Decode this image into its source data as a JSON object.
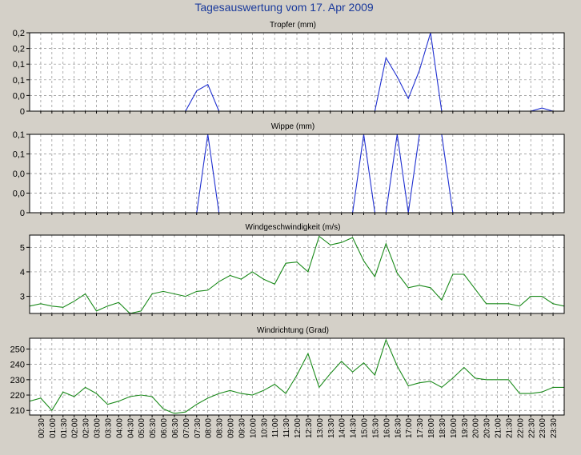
{
  "title": "Tagesauswertung vom 17. Apr 2009",
  "colors": {
    "background": "#d4d0c8",
    "plot_background": "#ffffff",
    "title": "#1a3a9c",
    "grid": "#8c8c8c",
    "blue_series": "#1f2fd0",
    "green_series": "#1a8a1a"
  },
  "x_labels": [
    "00:30",
    "01:00",
    "01:30",
    "02:00",
    "02:30",
    "03:00",
    "03:30",
    "04:00",
    "04:30",
    "05:00",
    "05:30",
    "06:00",
    "06:30",
    "07:00",
    "07:30",
    "08:00",
    "08:30",
    "09:00",
    "09:30",
    "10:00",
    "10:30",
    "11:00",
    "11:30",
    "12:00",
    "12:30",
    "13:00",
    "13:30",
    "14:00",
    "14:30",
    "15:00",
    "15:30",
    "16:00",
    "16:30",
    "17:00",
    "17:30",
    "18:00",
    "18:30",
    "19:00",
    "19:30",
    "20:00",
    "20:30",
    "21:00",
    "21:30",
    "22:00",
    "22:30",
    "23:00",
    "23:30"
  ],
  "chart_data": [
    {
      "type": "line",
      "title": "Tropfer (mm)",
      "y_tick_labels": [
        "0",
        "0,0",
        "0,1",
        "0,1",
        "0,2",
        "0,2"
      ],
      "ylim": [
        0,
        0.25
      ],
      "grid": true,
      "color": "#1f2fd0",
      "x": [
        "00:00",
        "00:30",
        "01:00",
        "01:30",
        "02:00",
        "02:30",
        "03:00",
        "03:30",
        "04:00",
        "04:30",
        "05:00",
        "05:30",
        "06:00",
        "06:30",
        "07:00",
        "07:30",
        "08:00",
        "08:30",
        "09:00",
        "09:30",
        "10:00",
        "10:30",
        "11:00",
        "11:30",
        "12:00",
        "12:30",
        "13:00",
        "13:30",
        "14:00",
        "14:30",
        "15:00",
        "15:30",
        "16:00",
        "16:30",
        "17:00",
        "17:30",
        "18:00",
        "18:30",
        "19:00",
        "19:30",
        "20:00",
        "20:30",
        "21:00",
        "21:30",
        "22:00",
        "22:30",
        "23:00",
        "23:30",
        "24:00"
      ],
      "values": [
        0,
        0,
        0,
        0,
        0,
        0,
        0,
        0,
        0,
        0,
        0,
        0,
        0,
        0,
        0,
        0.065,
        0.085,
        0,
        0,
        0,
        0,
        0,
        0,
        0,
        0,
        0,
        0,
        0,
        0,
        0,
        0,
        0,
        0.17,
        0.11,
        0.04,
        0.13,
        0.25,
        0,
        0,
        0,
        0,
        0,
        0,
        0,
        0,
        0,
        0.01,
        0,
        0
      ]
    },
    {
      "type": "line",
      "title": "Wippe (mm)",
      "y_tick_labels": [
        "0",
        "0,0",
        "0,0",
        "0,1",
        "0,1"
      ],
      "ylim": [
        0,
        0.2
      ],
      "grid": true,
      "color": "#1f2fd0",
      "x": [
        "00:00",
        "00:30",
        "01:00",
        "01:30",
        "02:00",
        "02:30",
        "03:00",
        "03:30",
        "04:00",
        "04:30",
        "05:00",
        "05:30",
        "06:00",
        "06:30",
        "07:00",
        "07:30",
        "08:00",
        "08:30",
        "09:00",
        "09:30",
        "10:00",
        "10:30",
        "11:00",
        "11:30",
        "12:00",
        "12:30",
        "13:00",
        "13:30",
        "14:00",
        "14:30",
        "15:00",
        "15:30",
        "16:00",
        "16:30",
        "17:00",
        "17:30",
        "18:00",
        "18:30",
        "19:00",
        "19:30",
        "20:00",
        "20:30",
        "21:00",
        "21:30",
        "22:00",
        "22:30",
        "23:00",
        "23:30",
        "24:00"
      ],
      "values": [
        0,
        0,
        0,
        0,
        0,
        0,
        0,
        0,
        0,
        0,
        0,
        0,
        0,
        0,
        0,
        0,
        0.2,
        0,
        0,
        0,
        0,
        0,
        0,
        0,
        0,
        0,
        0,
        0,
        0,
        0,
        0.2,
        0,
        0,
        0.2,
        0,
        0.2,
        0.2,
        0.2,
        0,
        0,
        0,
        0,
        0,
        0,
        0,
        0,
        0,
        0,
        0
      ]
    },
    {
      "type": "line",
      "title": "Windgeschwindigkeit (m/s)",
      "y_tick_labels": [
        "3",
        "4",
        "5"
      ],
      "y_ticks": [
        3,
        4,
        5
      ],
      "ylim": [
        2.3,
        5.5
      ],
      "grid": true,
      "color": "#1a8a1a",
      "x": [
        "00:00",
        "00:30",
        "01:00",
        "01:30",
        "02:00",
        "02:30",
        "03:00",
        "03:30",
        "04:00",
        "04:30",
        "05:00",
        "05:30",
        "06:00",
        "06:30",
        "07:00",
        "07:30",
        "08:00",
        "08:30",
        "09:00",
        "09:30",
        "10:00",
        "10:30",
        "11:00",
        "11:30",
        "12:00",
        "12:30",
        "13:00",
        "13:30",
        "14:00",
        "14:30",
        "15:00",
        "15:30",
        "16:00",
        "16:30",
        "17:00",
        "17:30",
        "18:00",
        "18:30",
        "19:00",
        "19:30",
        "20:00",
        "20:30",
        "21:00",
        "21:30",
        "22:00",
        "22:30",
        "23:00",
        "23:30",
        "24:00"
      ],
      "values": [
        2.6,
        2.7,
        2.6,
        2.55,
        2.8,
        3.1,
        2.4,
        2.6,
        2.75,
        2.3,
        2.4,
        3.1,
        3.2,
        3.1,
        3.0,
        3.2,
        3.25,
        3.6,
        3.85,
        3.7,
        4.0,
        3.7,
        3.5,
        4.35,
        4.4,
        4.0,
        5.45,
        5.1,
        5.2,
        5.4,
        4.45,
        3.8,
        5.15,
        3.95,
        3.35,
        3.45,
        3.35,
        2.85,
        3.9,
        3.9,
        3.3,
        2.7,
        2.7,
        2.7,
        2.6,
        3.0,
        3.0,
        2.7,
        2.6
      ]
    },
    {
      "type": "line",
      "title": "Windrichtung (Grad)",
      "y_tick_labels": [
        "210",
        "220",
        "230",
        "240",
        "250"
      ],
      "y_ticks": [
        210,
        220,
        230,
        240,
        250
      ],
      "ylim": [
        207,
        257
      ],
      "grid": true,
      "color": "#1a8a1a",
      "x": [
        "00:00",
        "00:30",
        "01:00",
        "01:30",
        "02:00",
        "02:30",
        "03:00",
        "03:30",
        "04:00",
        "04:30",
        "05:00",
        "05:30",
        "06:00",
        "06:30",
        "07:00",
        "07:30",
        "08:00",
        "08:30",
        "09:00",
        "09:30",
        "10:00",
        "10:30",
        "11:00",
        "11:30",
        "12:00",
        "12:30",
        "13:00",
        "13:30",
        "14:00",
        "14:30",
        "15:00",
        "15:30",
        "16:00",
        "16:30",
        "17:00",
        "17:30",
        "18:00",
        "18:30",
        "19:00",
        "19:30",
        "20:00",
        "20:30",
        "21:00",
        "21:30",
        "22:00",
        "22:30",
        "23:00",
        "23:30",
        "24:00"
      ],
      "values": [
        216,
        218,
        210,
        222,
        219,
        225,
        221,
        214,
        216,
        219,
        220,
        219,
        211,
        208,
        209,
        214,
        218,
        221,
        223,
        221,
        220,
        223,
        227,
        221,
        233,
        247,
        225,
        234,
        242,
        235,
        241,
        233,
        256,
        239,
        226,
        228,
        229,
        225,
        231,
        238,
        231,
        230,
        230,
        230,
        221,
        221,
        222,
        225,
        225
      ]
    }
  ]
}
